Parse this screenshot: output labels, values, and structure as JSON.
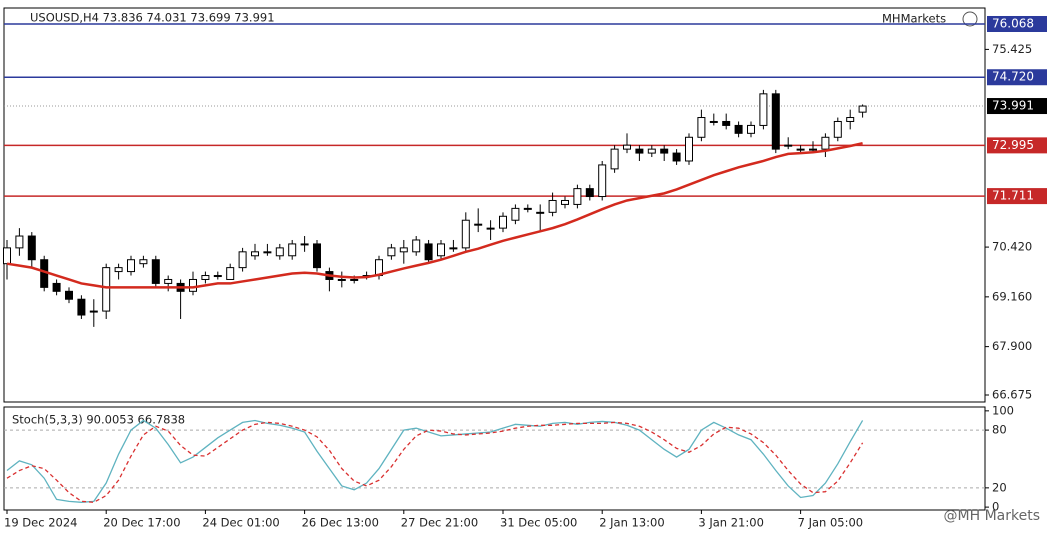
{
  "chart_data": [
    {
      "type": "candlestick",
      "title": "USOUSD,H4  73.836 74.031 73.699 73.991",
      "brand": "MHMarkets",
      "categories": [
        "19 Dec 2024",
        null,
        null,
        null,
        null,
        null,
        null,
        null,
        "20 Dec 17:00",
        null,
        null,
        null,
        null,
        null,
        null,
        null,
        "24 Dec 01:00",
        null,
        null,
        null,
        null,
        null,
        null,
        null,
        "26 Dec 13:00",
        null,
        null,
        null,
        null,
        null,
        null,
        null,
        "27 Dec 21:00",
        null,
        null,
        null,
        null,
        null,
        null,
        null,
        "31 Dec 05:00",
        null,
        null,
        null,
        null,
        null,
        null,
        null,
        "2 Jan 13:00",
        null,
        null,
        null,
        null,
        null,
        null,
        null,
        "3 Jan 21:00",
        null,
        null,
        null,
        null,
        null,
        null,
        null,
        "7 Jan 05:00",
        null,
        null,
        null,
        null,
        null
      ],
      "open": [
        70.0,
        70.4,
        70.7,
        70.1,
        69.5,
        69.3,
        69.1,
        68.8,
        68.8,
        69.8,
        69.8,
        70.0,
        70.1,
        69.5,
        69.5,
        69.3,
        69.6,
        69.7,
        69.6,
        69.9,
        70.2,
        70.3,
        70.2,
        70.2,
        70.5,
        70.5,
        69.8,
        69.6,
        69.6,
        69.7,
        69.7,
        70.2,
        70.3,
        70.3,
        70.5,
        70.2,
        70.4,
        70.4,
        71.0,
        70.9,
        70.9,
        71.1,
        71.4,
        71.3,
        71.3,
        71.5,
        71.5,
        71.9,
        71.7,
        72.4,
        72.9,
        72.9,
        72.8,
        72.9,
        72.8,
        72.6,
        73.2,
        73.6,
        73.6,
        73.5,
        73.3,
        73.5,
        74.3,
        73.0,
        72.9,
        72.9,
        72.9,
        73.2,
        73.6,
        73.836
      ],
      "high": [
        70.6,
        70.9,
        70.8,
        70.2,
        69.6,
        69.4,
        69.2,
        69.1,
        70.0,
        70.0,
        70.2,
        70.2,
        70.2,
        69.7,
        69.6,
        69.8,
        69.8,
        69.8,
        70.0,
        70.4,
        70.5,
        70.5,
        70.5,
        70.6,
        70.7,
        70.6,
        69.9,
        69.8,
        69.7,
        69.8,
        70.2,
        70.5,
        70.6,
        70.7,
        70.6,
        70.6,
        70.6,
        71.3,
        71.4,
        71.1,
        71.3,
        71.5,
        71.5,
        71.5,
        71.8,
        71.7,
        72.0,
        72.0,
        72.6,
        73.0,
        73.3,
        73.0,
        73.0,
        73.0,
        72.9,
        73.3,
        73.9,
        73.8,
        73.8,
        73.6,
        73.6,
        74.4,
        74.4,
        73.2,
        73.0,
        73.1,
        73.3,
        73.7,
        73.9,
        74.031
      ],
      "low": [
        69.6,
        70.2,
        69.9,
        69.3,
        69.2,
        69.0,
        68.6,
        68.4,
        68.6,
        69.6,
        69.7,
        69.9,
        69.4,
        69.3,
        68.6,
        69.2,
        69.5,
        69.6,
        69.6,
        69.8,
        70.1,
        70.2,
        70.1,
        70.1,
        70.3,
        69.8,
        69.3,
        69.4,
        69.5,
        69.6,
        69.6,
        70.1,
        70.0,
        70.2,
        70.0,
        70.1,
        70.3,
        70.3,
        70.8,
        70.6,
        70.8,
        71.0,
        71.3,
        70.8,
        71.2,
        71.4,
        71.4,
        71.6,
        71.6,
        72.3,
        72.8,
        72.6,
        72.7,
        72.6,
        72.5,
        72.5,
        73.1,
        73.5,
        73.4,
        73.2,
        73.2,
        73.4,
        72.8,
        72.9,
        72.8,
        72.8,
        72.7,
        73.1,
        73.4,
        73.699
      ],
      "close": [
        70.4,
        70.7,
        70.1,
        69.4,
        69.3,
        69.1,
        68.7,
        68.8,
        69.9,
        69.9,
        70.1,
        70.1,
        69.5,
        69.6,
        69.3,
        69.6,
        69.7,
        69.7,
        69.9,
        70.3,
        70.3,
        70.3,
        70.4,
        70.5,
        70.5,
        69.9,
        69.6,
        69.6,
        69.6,
        69.7,
        70.1,
        70.4,
        70.4,
        70.6,
        70.1,
        70.5,
        70.4,
        71.1,
        71.0,
        70.9,
        71.2,
        71.4,
        71.4,
        71.3,
        71.6,
        71.6,
        71.9,
        71.7,
        72.5,
        72.9,
        73.0,
        72.8,
        72.9,
        72.8,
        72.6,
        73.2,
        73.7,
        73.6,
        73.5,
        73.3,
        73.5,
        74.3,
        72.9,
        73.0,
        72.9,
        72.9,
        73.2,
        73.6,
        73.7,
        73.991
      ],
      "up_color": "#ffffff",
      "down_color": "#000000",
      "ma": {
        "color": "#d32a1e",
        "values": [
          70.0,
          69.95,
          69.9,
          69.8,
          69.7,
          69.6,
          69.5,
          69.45,
          69.4,
          69.4,
          69.4,
          69.4,
          69.4,
          69.4,
          69.4,
          69.4,
          69.45,
          69.5,
          69.5,
          69.55,
          69.6,
          69.65,
          69.7,
          69.75,
          69.77,
          69.75,
          69.7,
          69.67,
          69.65,
          69.66,
          69.72,
          69.8,
          69.88,
          69.95,
          70.02,
          70.1,
          70.2,
          70.3,
          70.38,
          70.48,
          70.58,
          70.66,
          70.74,
          70.82,
          70.9,
          71.0,
          71.12,
          71.25,
          71.38,
          71.5,
          71.6,
          71.66,
          71.72,
          71.78,
          71.88,
          72.0,
          72.12,
          72.24,
          72.34,
          72.44,
          72.52,
          72.6,
          72.7,
          72.78,
          72.8,
          72.82,
          72.86,
          72.92,
          72.98,
          73.05
        ]
      },
      "levels": [
        {
          "value": 76.068,
          "color": "#2b3a9c"
        },
        {
          "value": 74.72,
          "label": "74.720",
          "color": "#2b3a9c"
        },
        {
          "value": 72.995,
          "color": "#c62828"
        },
        {
          "value": 71.711,
          "color": "#c62828"
        }
      ],
      "current": {
        "value": 73.991,
        "color": "#000000"
      },
      "ylim": [
        66.498,
        76.473
      ],
      "yticks": [
        75.425,
        {
          "value": 70.42,
          "label": "70.420"
        },
        {
          "value": 69.16,
          "label": "69.160"
        },
        {
          "value": 67.9,
          "label": "67.900"
        },
        66.675
      ]
    },
    {
      "type": "stochastic",
      "title": "Stoch(5,3,3) 90.0053 66.7838",
      "series": [
        {
          "color": "#5fb3c0",
          "dash": false,
          "values": [
            38,
            48,
            44,
            30,
            8,
            6,
            5,
            6,
            25,
            55,
            80,
            90,
            82,
            65,
            46,
            52,
            62,
            72,
            80,
            88,
            90,
            87,
            85,
            82,
            78,
            58,
            40,
            22,
            18,
            25,
            40,
            60,
            80,
            82,
            78,
            74,
            75,
            76,
            77,
            78,
            82,
            86,
            85,
            84,
            87,
            88,
            86,
            88,
            89,
            88,
            85,
            80,
            70,
            60,
            52,
            60,
            80,
            88,
            82,
            75,
            70,
            55,
            38,
            22,
            10,
            12,
            25,
            45,
            68,
            90.0053
          ]
        },
        {
          "color": "#d93030",
          "dash": true,
          "values": [
            30,
            38,
            43,
            40,
            28,
            15,
            6,
            5,
            12,
            28,
            53,
            75,
            84,
            79,
            64,
            54,
            53,
            62,
            71,
            80,
            86,
            88,
            87,
            84,
            80,
            73,
            59,
            40,
            27,
            22,
            28,
            42,
            60,
            74,
            80,
            79,
            76,
            75,
            76,
            77,
            79,
            82,
            84,
            85,
            85,
            86,
            87,
            87,
            87,
            88,
            87,
            84,
            78,
            70,
            61,
            57,
            64,
            76,
            83,
            82,
            76,
            67,
            54,
            38,
            24,
            15,
            16,
            27,
            46,
            66.7838
          ]
        }
      ],
      "ylim": [
        -3,
        104
      ],
      "yticks": [
        0,
        20,
        80,
        100
      ],
      "grid_levels": [
        20,
        80
      ]
    }
  ],
  "watermark": "@MH Markets"
}
